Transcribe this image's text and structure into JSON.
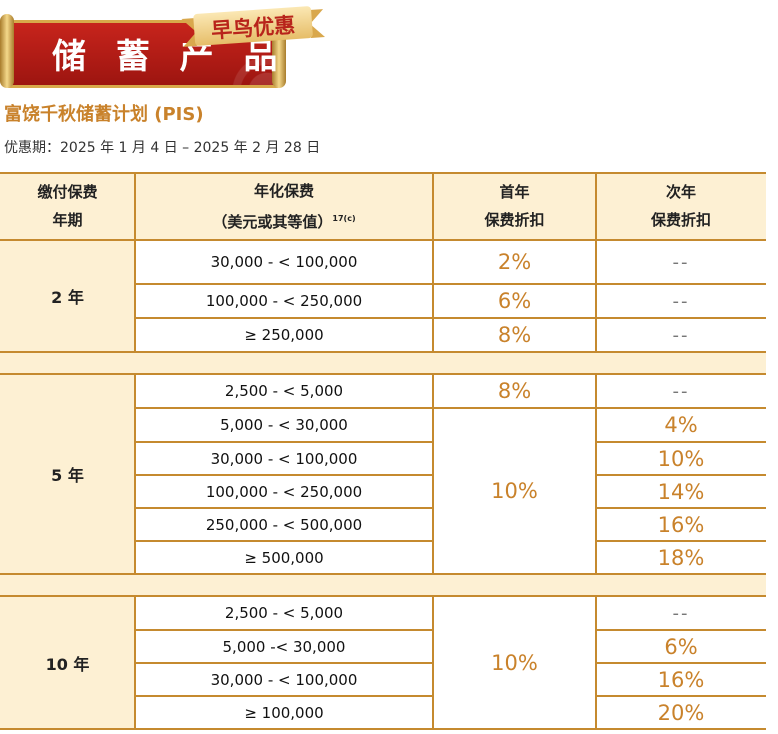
{
  "banner": {
    "title": "储 蓄 产 品",
    "ribbon": "早鸟优惠"
  },
  "plan_title": "富饶千秋储蓄计划 (PIS)",
  "period": "优惠期：2025 年 1 月 4 日 – 2025 年 2 月 28 日",
  "headers": {
    "term_l1": "缴付保费",
    "term_l2": "年期",
    "premium_l1": "年化保费",
    "premium_l2": "（美元或其等值）",
    "premium_sup": "17(c)",
    "first_l1": "首年",
    "first_l2": "保费折扣",
    "second_l1": "次年",
    "second_l2": "保费折扣"
  },
  "term2": {
    "label": "2 年",
    "rows": [
      {
        "range": "30,000 - < 100,000",
        "first": "2%",
        "second": "--"
      },
      {
        "range": "100,000 - < 250,000",
        "first": "6%",
        "second": "--"
      },
      {
        "range": "≥ 250,000",
        "first": "8%",
        "second": "--"
      }
    ]
  },
  "term5": {
    "label": "5 年",
    "row1": {
      "range": "2,500 - < 5,000",
      "first": "8%",
      "second": "--"
    },
    "merged_first": "10%",
    "rows": [
      {
        "range": "5,000 - < 30,000",
        "second": "4%"
      },
      {
        "range": "30,000 - < 100,000",
        "second": "10%"
      },
      {
        "range": "100,000 - < 250,000",
        "second": "14%"
      },
      {
        "range": "250,000 - < 500,000",
        "second": "16%"
      },
      {
        "range": "≥ 500,000",
        "second": "18%"
      }
    ]
  },
  "term10": {
    "label": "10 年",
    "merged_first": "10%",
    "rows": [
      {
        "range": "2,500 - < 5,000",
        "second": "--"
      },
      {
        "range": "5,000 -< 30,000",
        "second": "6%"
      },
      {
        "range": "30,000 - < 100,000",
        "second": "16%"
      },
      {
        "range": "≥ 100,000",
        "second": "20%"
      }
    ]
  }
}
